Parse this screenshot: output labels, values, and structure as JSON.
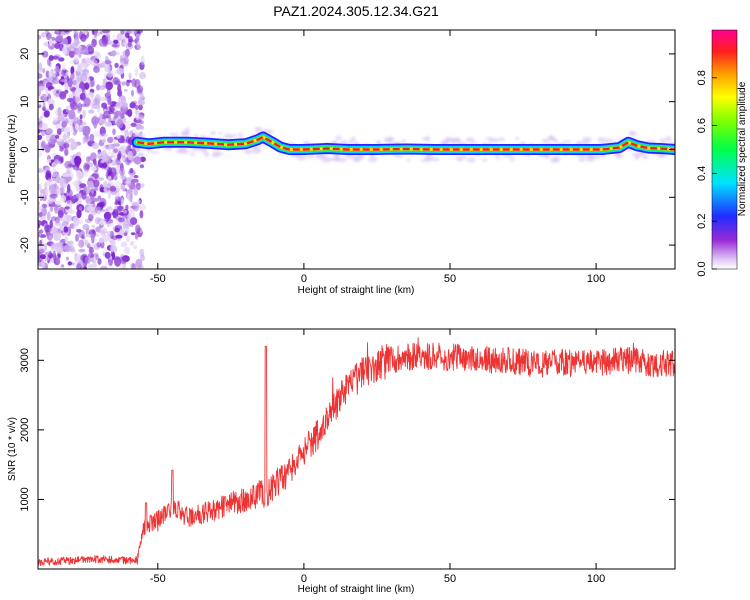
{
  "title": "PAZ1.2024.305.12.34.G21",
  "chart_data": [
    {
      "type": "heatmap",
      "xlabel": "Height of straight line (km)",
      "ylabel": "Frequency (Hz)",
      "xlim": [
        -91,
        127
      ],
      "ylim": [
        -25,
        25
      ],
      "xticks": [
        -50,
        0,
        50,
        100
      ],
      "yticks": [
        -20,
        -10,
        0,
        10,
        20
      ],
      "noise_region_x": [
        -91,
        -57
      ],
      "ridge": {
        "x": [
          -57,
          -53,
          -48,
          -40,
          -33,
          -26,
          -20,
          -16,
          -14,
          -11,
          -8,
          -5,
          0,
          8,
          15,
          25,
          35,
          45,
          55,
          65,
          75,
          85,
          95,
          102,
          108,
          111,
          114,
          118,
          122,
          127
        ],
        "freq": [
          1.5,
          1.2,
          1.5,
          1.5,
          1.3,
          1.0,
          1.2,
          2.0,
          2.6,
          1.6,
          0.5,
          0.0,
          0.0,
          0.2,
          0.0,
          0.0,
          0.1,
          0.0,
          0.0,
          0.0,
          0.0,
          0.0,
          0.0,
          0.0,
          0.4,
          1.5,
          0.8,
          0.3,
          0.2,
          0.0
        ]
      },
      "colorbar": {
        "label": "Normalized spectral amplitude",
        "range": [
          0.0,
          1.0
        ],
        "ticks": [
          0.0,
          0.2,
          0.4,
          0.6,
          0.8
        ]
      }
    },
    {
      "type": "line",
      "xlabel": "Height of straight line (km)",
      "ylabel": "SNR (10 * v/v)",
      "xlim": [
        -91,
        127
      ],
      "ylim": [
        0,
        3450
      ],
      "xticks": [
        -50,
        0,
        50,
        100
      ],
      "yticks": [
        1000,
        2000,
        3000
      ],
      "series": [
        {
          "color": "#ee3333",
          "x": [
            -91,
            -80,
            -70,
            -60,
            -57,
            -55,
            -50,
            -45,
            -40,
            -35,
            -30,
            -25,
            -20,
            -15,
            -13,
            -10,
            -5,
            0,
            5,
            10,
            15,
            20,
            25,
            30,
            35,
            40,
            50,
            60,
            70,
            80,
            90,
            100,
            110,
            120,
            127
          ],
          "y": [
            100,
            120,
            140,
            120,
            150,
            600,
            700,
            900,
            750,
            800,
            850,
            950,
            1000,
            1100,
            1050,
            1200,
            1400,
            1700,
            1950,
            2300,
            2600,
            2800,
            2950,
            3000,
            3050,
            3050,
            3050,
            3000,
            3000,
            2950,
            2950,
            2950,
            3000,
            2950,
            2950
          ],
          "spikes": [
            {
              "x": -13,
              "y": 3200
            },
            {
              "x": -54,
              "y": 950
            },
            {
              "x": -45,
              "y": 1420
            }
          ]
        }
      ]
    }
  ]
}
